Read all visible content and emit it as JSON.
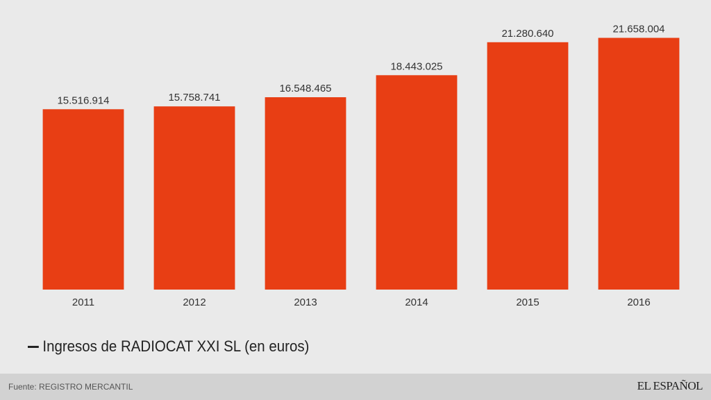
{
  "chart_data": {
    "type": "bar",
    "categories": [
      "2011",
      "2012",
      "2013",
      "2014",
      "2015",
      "2016"
    ],
    "series": [
      {
        "name": "Ingresos de RADIOCAT XXI SL (en euros)",
        "values": [
          15516914,
          15758741,
          16548465,
          18443025,
          21280640,
          21658004
        ],
        "labels": [
          "15.516.914",
          "15.758.741",
          "16.548.465",
          "18.443.025",
          "21.280.640",
          "21.658.004"
        ],
        "color": "#e83e14"
      }
    ],
    "ylim": [
      0,
      23000000
    ],
    "grid": false,
    "legend_position": "bottom-left"
  },
  "legend": {
    "label": "Ingresos de RADIOCAT XXI SL (en euros)"
  },
  "footer": {
    "source": "Fuente: REGISTRO MERCANTIL",
    "brand": "EL ESPAÑOL"
  },
  "colors": {
    "background": "#eaeaea",
    "bar": "#e83e14",
    "footer_bg": "#d2d2d2"
  }
}
